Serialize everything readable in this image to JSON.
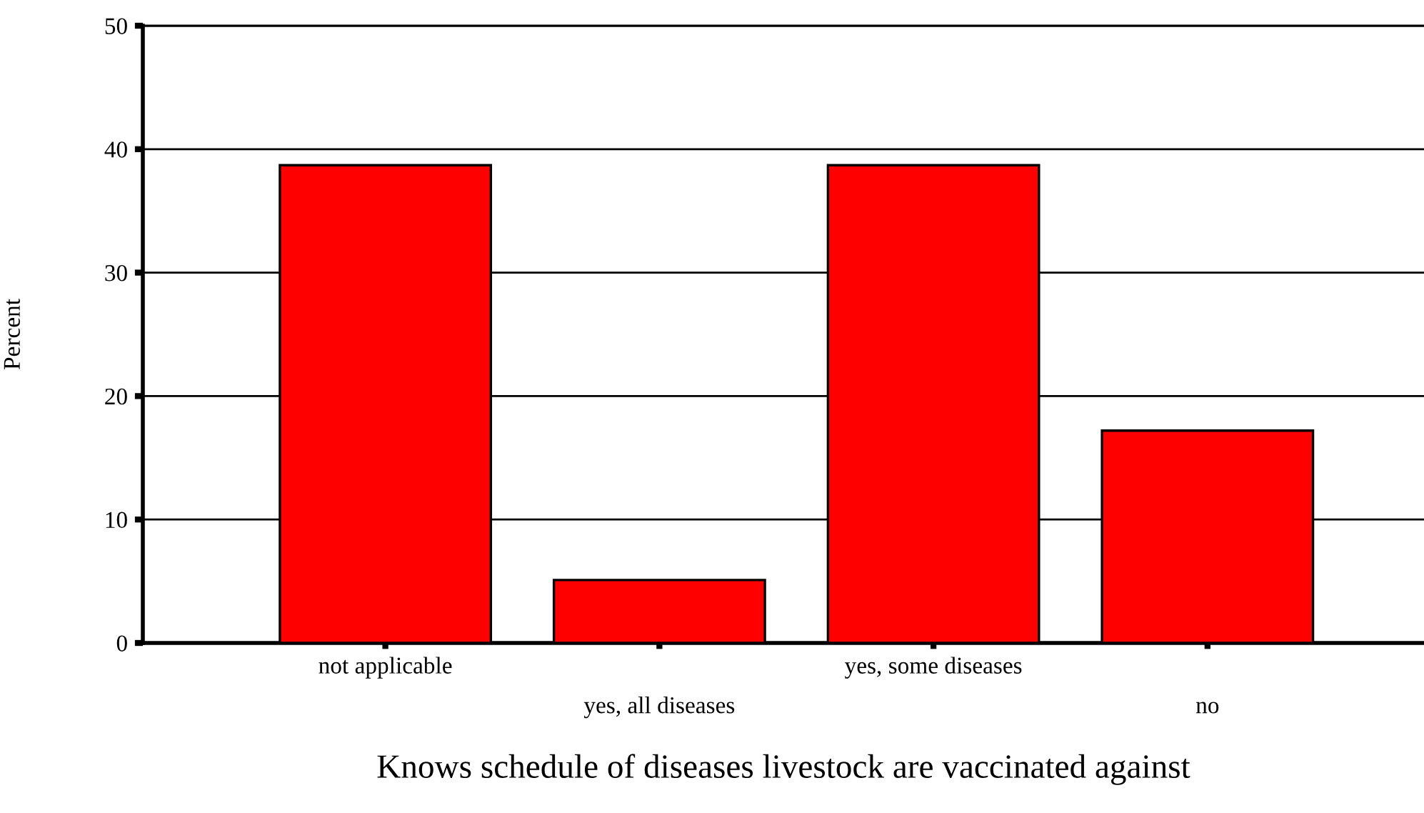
{
  "chart_data": {
    "type": "bar",
    "categories": [
      "not applicable",
      "yes, all diseases",
      "yes, some diseases",
      "no"
    ],
    "values": [
      38.7,
      5.1,
      38.7,
      17.2
    ],
    "color": "#ff0000",
    "xlabel": "Knows schedule of diseases livestock are vaccinated against",
    "ylabel": "Percent",
    "ylim": [
      0,
      50
    ],
    "yticks": [
      0,
      10,
      20,
      30,
      40,
      50
    ],
    "grid": "y"
  }
}
